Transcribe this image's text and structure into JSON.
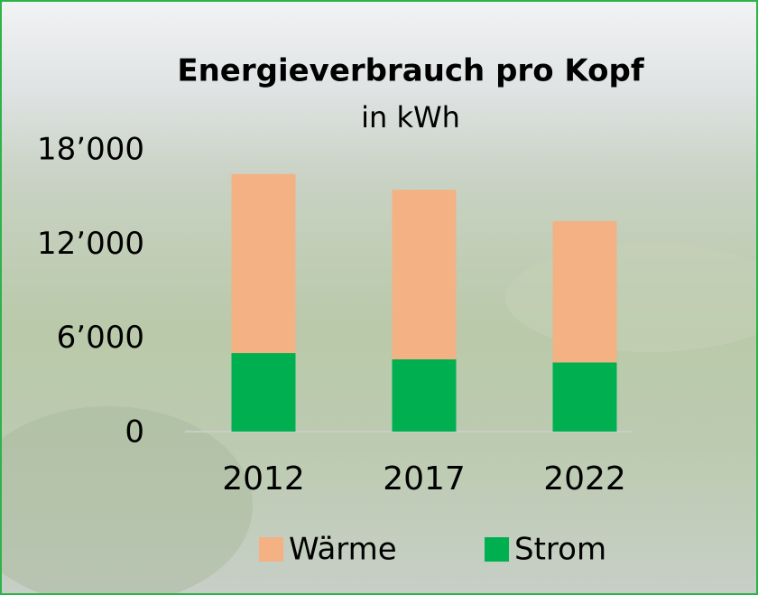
{
  "chart_data": {
    "type": "stacked-bar",
    "title": "Energieverbrauch pro Kopf",
    "subtitle": "in kWh",
    "categories": [
      "2012",
      "2017",
      "2022"
    ],
    "series": [
      {
        "name": "Wärme",
        "color": "#f4b183",
        "values": [
          11400,
          10800,
          9000
        ]
      },
      {
        "name": "Strom",
        "color": "#00b050",
        "values": [
          5000,
          4600,
          4400
        ]
      }
    ],
    "ylim": [
      0,
      18000
    ],
    "yticks": [
      0,
      {
        "value": 6000,
        "label": "6’000"
      },
      {
        "value": 12000,
        "label": "12’000"
      },
      {
        "value": 18000,
        "label": "18’000"
      }
    ]
  }
}
